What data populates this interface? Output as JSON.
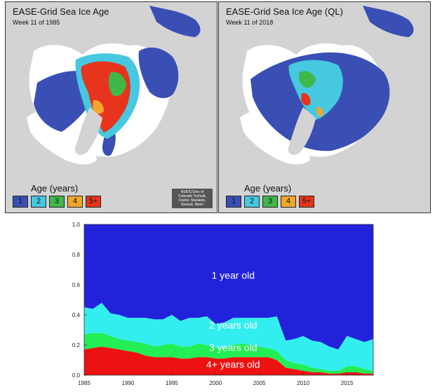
{
  "maps": [
    {
      "title": "EASE-Grid Sea Ice Age",
      "subtitle": "Week 11 of 1985",
      "age_label": "Age (years)",
      "legend": [
        {
          "label": "1",
          "color": "#3a4fb4"
        },
        {
          "label": "2",
          "color": "#45c8e0"
        },
        {
          "label": "3",
          "color": "#3fb84a"
        },
        {
          "label": "4",
          "color": "#f2a72b"
        },
        {
          "label": "5+",
          "color": "#e8341c"
        }
      ],
      "credit": "NSIDC/Univ of Colorado Tschudi, Fowler, Maslanik, Stewart, Meier"
    },
    {
      "title": "EASE-Grid Sea Ice Age (QL)",
      "subtitle": "Week 11 of 2018",
      "age_label": "Age (years)",
      "legend": [
        {
          "label": "1",
          "color": "#3a4fb4"
        },
        {
          "label": "2",
          "color": "#45c8e0"
        },
        {
          "label": "3",
          "color": "#3fb84a"
        },
        {
          "label": "4",
          "color": "#f2a72b"
        },
        {
          "label": "5+",
          "color": "#e8341c"
        }
      ]
    }
  ],
  "chart_data": {
    "type": "area",
    "stacked": true,
    "x": [
      1985,
      1986,
      1987,
      1988,
      1989,
      1990,
      1991,
      1992,
      1993,
      1994,
      1995,
      1996,
      1997,
      1998,
      1999,
      2000,
      2001,
      2002,
      2003,
      2004,
      2005,
      2006,
      2007,
      2008,
      2009,
      2010,
      2011,
      2012,
      2013,
      2014,
      2015,
      2016,
      2017,
      2018
    ],
    "xlim": [
      1985,
      2018
    ],
    "ylim": [
      0,
      1.0
    ],
    "x_ticks": [
      "1985",
      "1990",
      "1995",
      "2000",
      "2005",
      "2010",
      "2015"
    ],
    "y_ticks": [
      "0.0",
      "0.2",
      "0.4",
      "0.6",
      "0.8",
      "1.0"
    ],
    "grid": false,
    "series": [
      {
        "name": "4+ years old",
        "color": "#ee1111",
        "values": [
          0.17,
          0.18,
          0.19,
          0.18,
          0.17,
          0.16,
          0.15,
          0.13,
          0.12,
          0.12,
          0.12,
          0.11,
          0.11,
          0.12,
          0.12,
          0.11,
          0.11,
          0.12,
          0.12,
          0.12,
          0.12,
          0.12,
          0.1,
          0.05,
          0.04,
          0.03,
          0.02,
          0.02,
          0.01,
          0.01,
          0.02,
          0.02,
          0.01,
          0.01
        ]
      },
      {
        "name": "3 years old",
        "color": "#22ee55",
        "values": [
          0.1,
          0.1,
          0.09,
          0.08,
          0.07,
          0.07,
          0.07,
          0.08,
          0.07,
          0.08,
          0.09,
          0.08,
          0.08,
          0.09,
          0.08,
          0.07,
          0.07,
          0.08,
          0.09,
          0.08,
          0.07,
          0.06,
          0.06,
          0.05,
          0.04,
          0.04,
          0.03,
          0.02,
          0.02,
          0.02,
          0.04,
          0.04,
          0.03,
          0.02
        ]
      },
      {
        "name": "2 years old",
        "color": "#33eeee",
        "values": [
          0.18,
          0.16,
          0.2,
          0.15,
          0.16,
          0.15,
          0.16,
          0.17,
          0.18,
          0.17,
          0.19,
          0.17,
          0.19,
          0.17,
          0.19,
          0.16,
          0.17,
          0.18,
          0.17,
          0.18,
          0.19,
          0.2,
          0.23,
          0.13,
          0.16,
          0.19,
          0.18,
          0.18,
          0.16,
          0.14,
          0.2,
          0.18,
          0.18,
          0.21
        ]
      },
      {
        "name": "1 year old",
        "color": "#2222dd",
        "values": [
          0.55,
          0.56,
          0.52,
          0.59,
          0.6,
          0.62,
          0.62,
          0.62,
          0.63,
          0.63,
          0.6,
          0.64,
          0.62,
          0.62,
          0.61,
          0.66,
          0.65,
          0.62,
          0.62,
          0.62,
          0.62,
          0.62,
          0.61,
          0.77,
          0.76,
          0.74,
          0.77,
          0.78,
          0.81,
          0.83,
          0.74,
          0.76,
          0.78,
          0.76
        ]
      }
    ]
  }
}
